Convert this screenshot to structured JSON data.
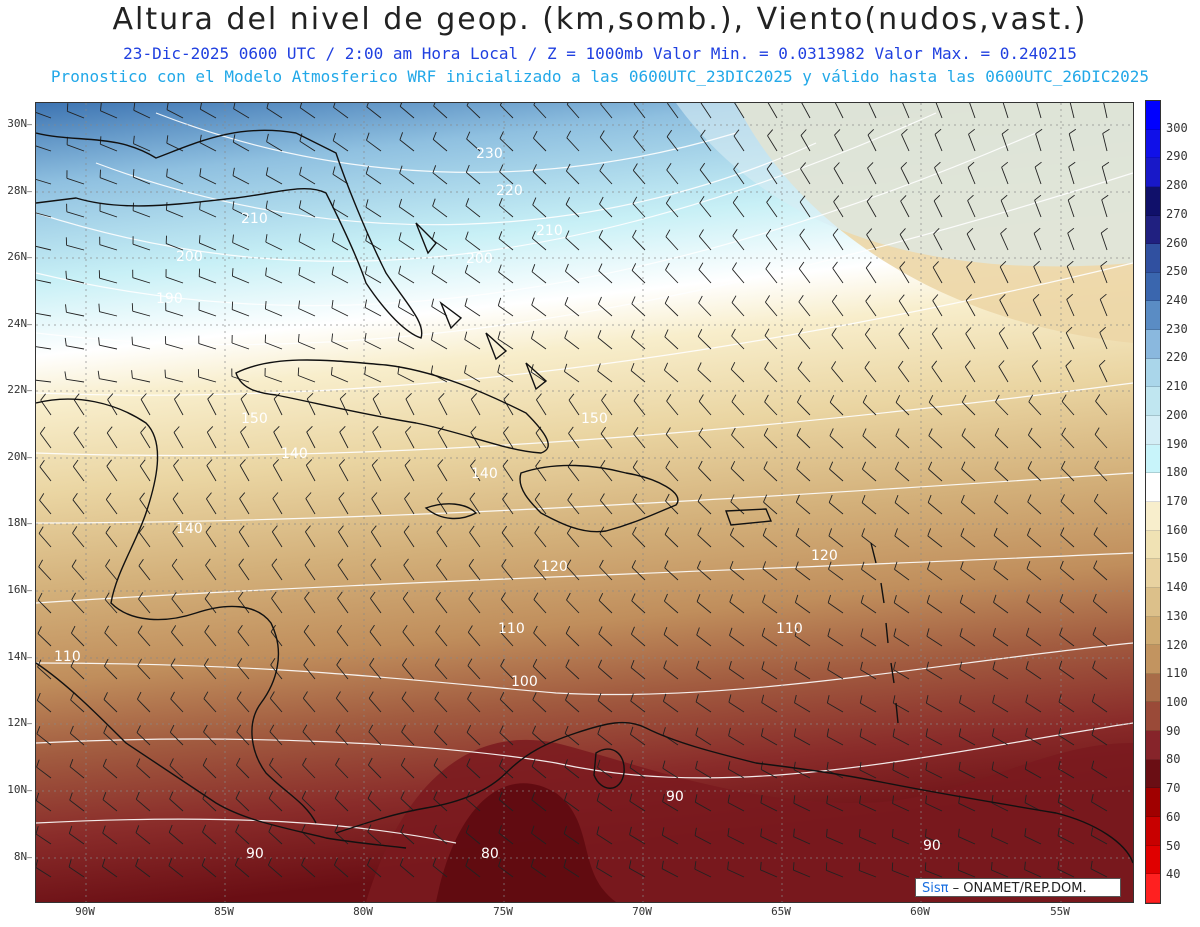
{
  "header": {
    "title": "Altura del nivel de geop. (km,somb.), Viento(nudos,vast.)",
    "line1": "23-Dic-2025  0600 UTC / 2:00 am Hora Local / Z = 1000mb  Valor Min. = 0.0313982  Valor Max. = 0.240215",
    "line2": "Pronostico con el Modelo Atmosferico WRF inicializado a las 0600UTC_23DIC2025 y válido hasta las  0600UTC_26DIC2025"
  },
  "map": {
    "lat_labels": [
      "30N",
      "28N",
      "26N",
      "24N",
      "22N",
      "20N",
      "18N",
      "16N",
      "14N",
      "12N",
      "10N",
      "8N"
    ],
    "lon_labels": [
      "90W",
      "85W",
      "80W",
      "75W",
      "70W",
      "65W",
      "60W",
      "55W"
    ],
    "contour_labels": [
      "230",
      "220",
      "210",
      "210",
      "200",
      "200",
      "190",
      "150",
      "150",
      "140",
      "140",
      "140",
      "120",
      "120",
      "110",
      "110",
      "110",
      "100",
      "90",
      "90",
      "90",
      "80"
    ],
    "credit": {
      "sis": "Sisπ",
      "rest": " – ONAMET/REP.DOM."
    }
  },
  "colorbar": {
    "labels": [
      "300",
      "290",
      "280",
      "270",
      "260",
      "250",
      "240",
      "230",
      "220",
      "210",
      "200",
      "190",
      "180",
      "170",
      "160",
      "150",
      "140",
      "130",
      "120",
      "110",
      "100",
      "90",
      "80",
      "70",
      "60",
      "50",
      "40"
    ],
    "colors": [
      "#0000ff",
      "#1010e8",
      "#1818c8",
      "#10106a",
      "#202080",
      "#3050a0",
      "#3a66ae",
      "#5a8cc4",
      "#8ab8de",
      "#aad6ea",
      "#c0e6f0",
      "#d4eef6",
      "#c8f4fa",
      "#ffffff",
      "#f8eecc",
      "#f0e2b4",
      "#e8d2a0",
      "#dcc08a",
      "#cfab72",
      "#c29460",
      "#a86c48",
      "#9a4a38",
      "#86242a",
      "#6a0e14",
      "#a00000",
      "#c80000",
      "#e00000",
      "#ff2020"
    ]
  }
}
